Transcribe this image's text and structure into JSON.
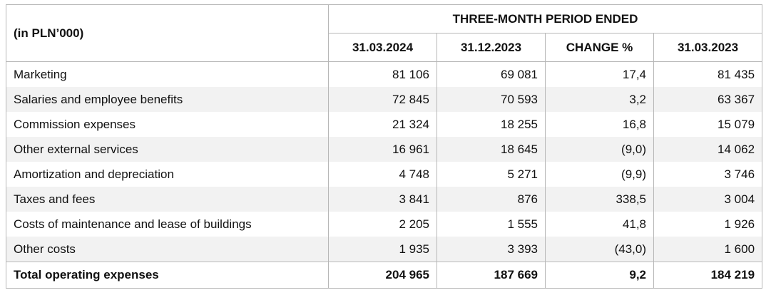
{
  "table": {
    "unit_label": "(in PLN’000)",
    "group_header": "THREE-MONTH PERIOD ENDED",
    "columns": [
      "31.03.2024",
      "31.12.2023",
      "CHANGE %",
      "31.03.2023"
    ],
    "rows": [
      {
        "label": "Marketing",
        "values": [
          "81 106",
          "69 081",
          "17,4",
          "81 435"
        ]
      },
      {
        "label": "Salaries and employee benefits",
        "values": [
          "72 845",
          "70 593",
          "3,2",
          "63 367"
        ]
      },
      {
        "label": "Commission expenses",
        "values": [
          "21 324",
          "18 255",
          "16,8",
          "15 079"
        ]
      },
      {
        "label": "Other external services",
        "values": [
          "16 961",
          "18 645",
          "(9,0)",
          "14 062"
        ]
      },
      {
        "label": "Amortization and depreciation",
        "values": [
          "4 748",
          "5 271",
          "(9,9)",
          "3 746"
        ]
      },
      {
        "label": "Taxes and fees",
        "values": [
          "3 841",
          "876",
          "338,5",
          "3 004"
        ]
      },
      {
        "label": "Costs of maintenance and lease of buildings",
        "values": [
          "2 205",
          "1 555",
          "41,8",
          "1 926"
        ]
      },
      {
        "label": "Other costs",
        "values": [
          "1 935",
          "3 393",
          "(43,0)",
          "1 600"
        ]
      }
    ],
    "total": {
      "label": "Total operating expenses",
      "values": [
        "204 965",
        "187 669",
        "9,2",
        "184 219"
      ]
    }
  }
}
